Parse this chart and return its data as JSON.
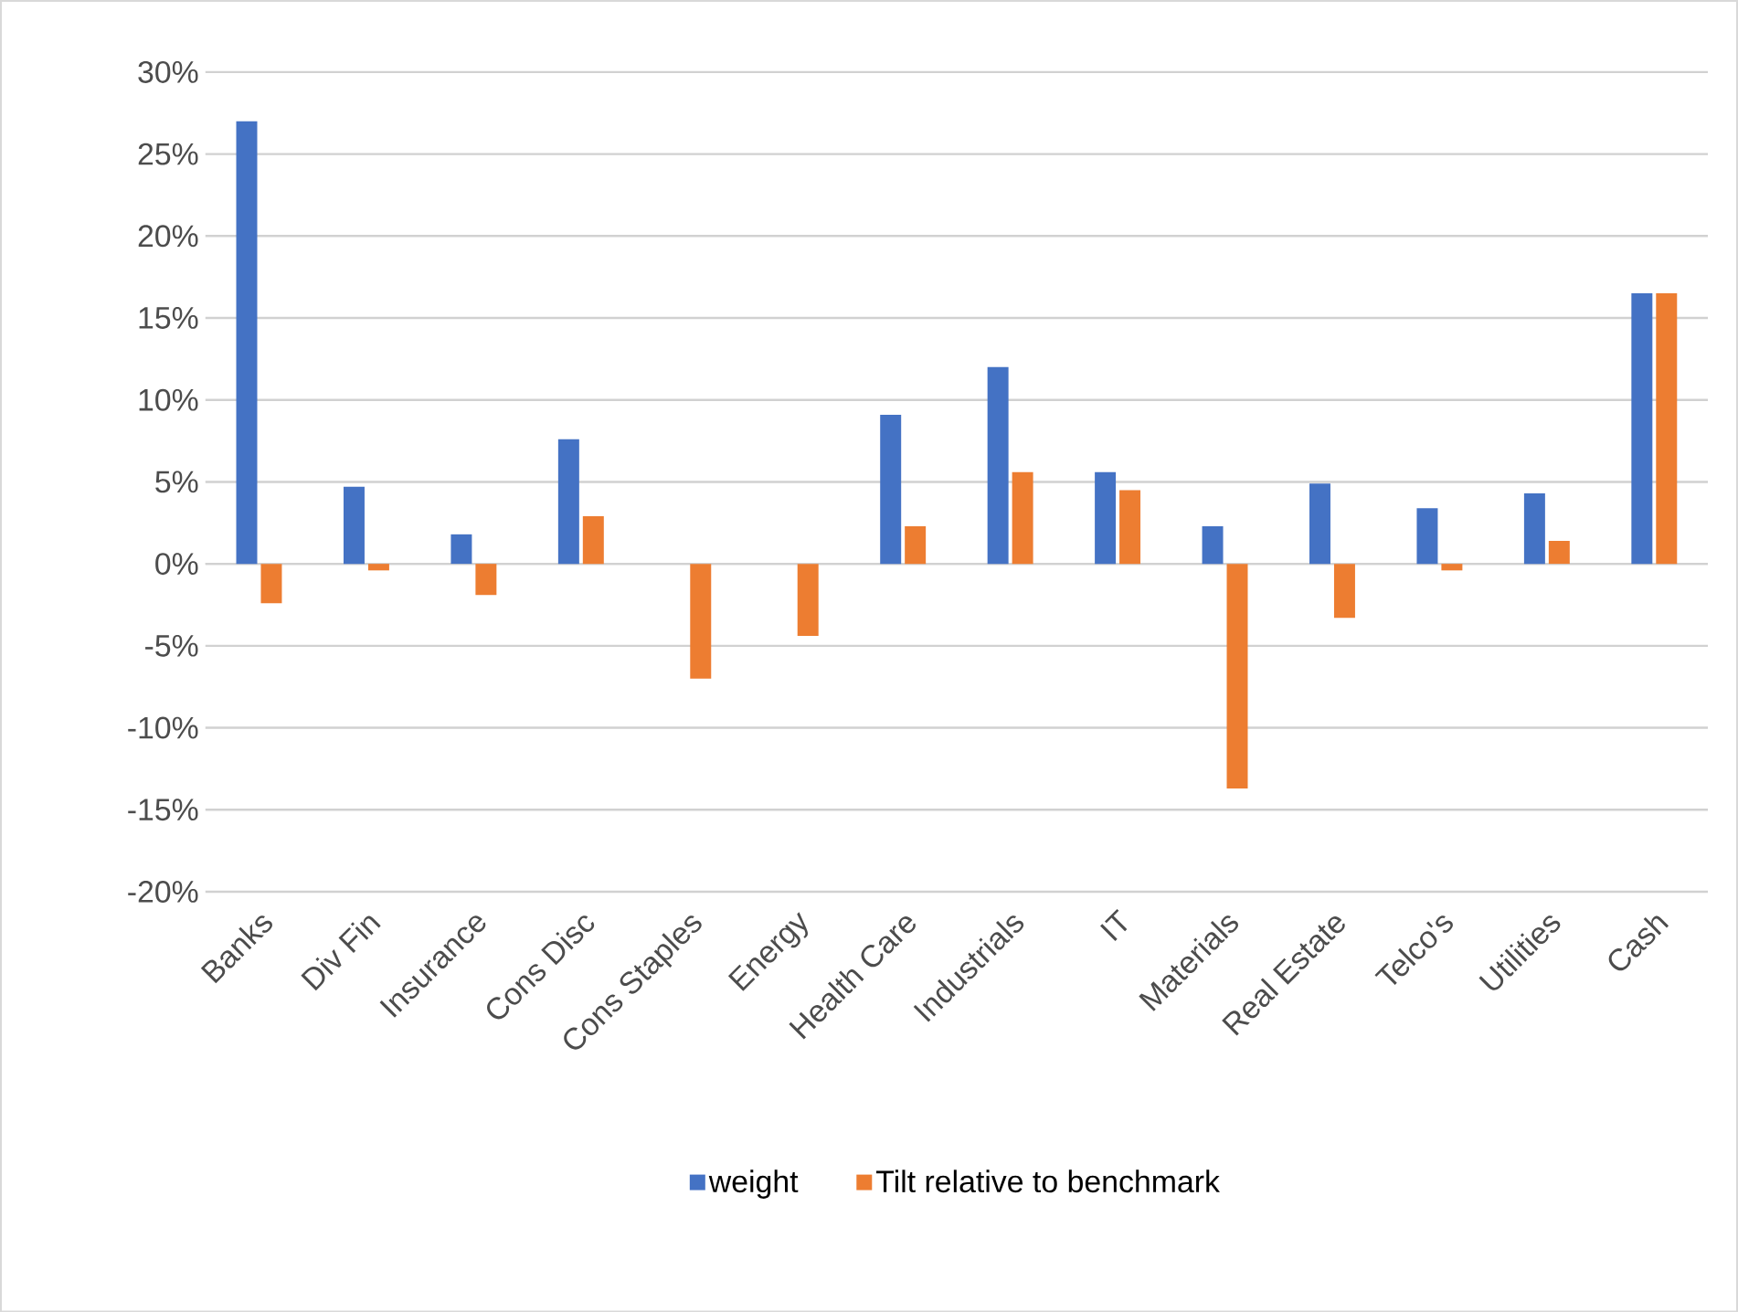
{
  "chart_data": {
    "type": "bar",
    "categories": [
      "Banks",
      "Div Fin",
      "Insurance",
      "Cons Disc",
      "Cons Staples",
      "Energy",
      "Health Care",
      "Industrials",
      "IT",
      "Materials",
      "Real Estate",
      "Telco's",
      "Utilities",
      "Cash"
    ],
    "series": [
      {
        "name": "weight",
        "color": "#4472c4",
        "values": [
          27,
          4.7,
          1.8,
          7.6,
          0,
          0,
          9.1,
          12.0,
          5.6,
          2.3,
          4.9,
          3.4,
          4.3,
          16.5
        ]
      },
      {
        "name": "Tilt relative to benchmark",
        "color": "#ed7d31",
        "values": [
          -2.4,
          -0.4,
          -1.9,
          2.9,
          -7.0,
          -4.4,
          2.3,
          5.6,
          4.5,
          -13.7,
          -3.3,
          -0.4,
          1.4,
          16.5
        ]
      }
    ],
    "ylim": [
      -20,
      30
    ],
    "yticks": [
      {
        "value": -20,
        "label": "-20%"
      },
      {
        "value": -15,
        "label": "-15%"
      },
      {
        "value": -10,
        "label": "-10%"
      },
      {
        "value": -5,
        "label": "-5%"
      },
      {
        "value": 0,
        "label": "0%"
      },
      {
        "value": 5,
        "label": "5%"
      },
      {
        "value": 10,
        "label": "10%"
      },
      {
        "value": 15,
        "label": "15%"
      },
      {
        "value": 20,
        "label": "20%"
      },
      {
        "value": 25,
        "label": "25%"
      },
      {
        "value": 30,
        "label": "30%"
      }
    ],
    "grid": "y",
    "legend": "bottom"
  }
}
